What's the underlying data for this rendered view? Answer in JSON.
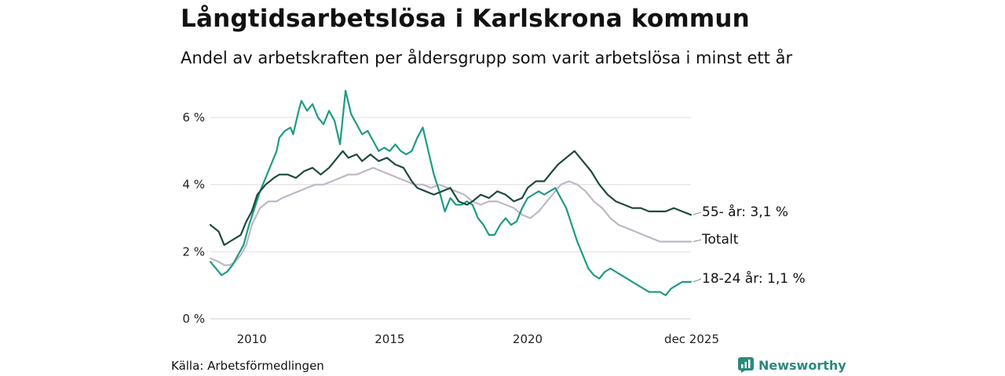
{
  "title": "Långtidsarbetslösa i Karlskrona kommun",
  "subtitle": "Andel av arbetskraften per åldersgrupp som varit arbetslösa i minst ett år",
  "source": "Källa: Arbetsförmedlingen",
  "logo": {
    "text": "Newsworthy",
    "color": "#2a8a7b"
  },
  "chart_data": {
    "type": "line",
    "xlim": [
      2008.5,
      2025.92
    ],
    "ylim": [
      0,
      6.7
    ],
    "grid": true,
    "y_ticks": [
      0,
      2,
      4,
      6
    ],
    "y_tick_labels": [
      "0 %",
      "2 %",
      "4 %",
      "6 %"
    ],
    "x_ticks": [
      2010,
      2015,
      2020,
      2025.92
    ],
    "x_tick_labels": [
      "2010",
      "2015",
      "2020",
      "dec 2025"
    ],
    "series": [
      {
        "name": "55- år",
        "end_label": "55- år: 3,1 %",
        "color": "#1f4a3f",
        "x": [
          2008.5,
          2008.8,
          2009.0,
          2009.2,
          2009.4,
          2009.6,
          2009.8,
          2010.0,
          2010.2,
          2010.5,
          2010.8,
          2011.0,
          2011.3,
          2011.6,
          2011.9,
          2012.2,
          2012.5,
          2012.8,
          2013.0,
          2013.3,
          2013.5,
          2013.8,
          2014.0,
          2014.3,
          2014.6,
          2014.9,
          2015.2,
          2015.5,
          2015.8,
          2016.0,
          2016.3,
          2016.6,
          2016.9,
          2017.2,
          2017.5,
          2017.8,
          2018.0,
          2018.3,
          2018.6,
          2018.9,
          2019.2,
          2019.5,
          2019.8,
          2020.0,
          2020.3,
          2020.6,
          2020.9,
          2021.1,
          2021.4,
          2021.7,
          2022.0,
          2022.3,
          2022.6,
          2022.9,
          2023.2,
          2023.5,
          2023.8,
          2024.1,
          2024.4,
          2024.7,
          2025.0,
          2025.3,
          2025.6,
          2025.92
        ],
        "y": [
          2.8,
          2.6,
          2.2,
          2.3,
          2.4,
          2.5,
          2.9,
          3.2,
          3.7,
          4.0,
          4.2,
          4.3,
          4.3,
          4.2,
          4.4,
          4.5,
          4.3,
          4.5,
          4.7,
          5.0,
          4.8,
          4.9,
          4.7,
          4.9,
          4.7,
          4.8,
          4.6,
          4.5,
          4.1,
          3.9,
          3.8,
          3.7,
          3.8,
          3.9,
          3.5,
          3.4,
          3.5,
          3.7,
          3.6,
          3.8,
          3.7,
          3.5,
          3.6,
          3.9,
          4.1,
          4.1,
          4.4,
          4.6,
          4.8,
          5.0,
          4.7,
          4.4,
          4.0,
          3.7,
          3.5,
          3.4,
          3.3,
          3.3,
          3.2,
          3.2,
          3.2,
          3.3,
          3.2,
          3.1
        ]
      },
      {
        "name": "Totalt",
        "end_label": "Totalt",
        "color": "#bdb8c6",
        "x": [
          2008.5,
          2008.8,
          2009.0,
          2009.2,
          2009.4,
          2009.6,
          2009.8,
          2010.0,
          2010.3,
          2010.6,
          2010.9,
          2011.1,
          2011.4,
          2011.7,
          2012.0,
          2012.3,
          2012.6,
          2012.9,
          2013.2,
          2013.5,
          2013.8,
          2014.1,
          2014.4,
          2014.7,
          2015.0,
          2015.3,
          2015.6,
          2015.9,
          2016.2,
          2016.5,
          2016.8,
          2017.1,
          2017.4,
          2017.7,
          2018.0,
          2018.3,
          2018.6,
          2018.9,
          2019.2,
          2019.5,
          2019.8,
          2020.1,
          2020.4,
          2020.7,
          2021.0,
          2021.2,
          2021.5,
          2021.8,
          2022.1,
          2022.4,
          2022.7,
          2023.0,
          2023.3,
          2023.6,
          2023.9,
          2024.2,
          2024.5,
          2024.8,
          2025.1,
          2025.4,
          2025.7,
          2025.92
        ],
        "y": [
          1.8,
          1.7,
          1.6,
          1.6,
          1.7,
          1.9,
          2.2,
          2.8,
          3.3,
          3.5,
          3.5,
          3.6,
          3.7,
          3.8,
          3.9,
          4.0,
          4.0,
          4.1,
          4.2,
          4.3,
          4.3,
          4.4,
          4.5,
          4.4,
          4.3,
          4.2,
          4.1,
          4.0,
          4.0,
          3.9,
          4.0,
          3.9,
          3.8,
          3.7,
          3.5,
          3.4,
          3.5,
          3.5,
          3.4,
          3.3,
          3.1,
          3.0,
          3.2,
          3.5,
          3.8,
          4.0,
          4.1,
          4.0,
          3.8,
          3.5,
          3.3,
          3.0,
          2.8,
          2.7,
          2.6,
          2.5,
          2.4,
          2.3,
          2.3,
          2.3,
          2.3,
          2.3
        ]
      },
      {
        "name": "18-24 år",
        "end_label": "18-24 år: 1,1 %",
        "color": "#1f9a86",
        "x": [
          2008.5,
          2008.7,
          2008.9,
          2009.1,
          2009.3,
          2009.5,
          2009.7,
          2009.9,
          2010.1,
          2010.3,
          2010.5,
          2010.7,
          2010.9,
          2011.0,
          2011.2,
          2011.4,
          2011.5,
          2011.7,
          2011.8,
          2012.0,
          2012.2,
          2012.4,
          2012.6,
          2012.8,
          2013.0,
          2013.2,
          2013.4,
          2013.6,
          2013.8,
          2014.0,
          2014.2,
          2014.4,
          2014.6,
          2014.8,
          2015.0,
          2015.2,
          2015.4,
          2015.6,
          2015.8,
          2016.0,
          2016.2,
          2016.4,
          2016.6,
          2016.8,
          2017.0,
          2017.2,
          2017.4,
          2017.6,
          2017.8,
          2018.0,
          2018.2,
          2018.4,
          2018.6,
          2018.8,
          2019.0,
          2019.2,
          2019.4,
          2019.6,
          2019.8,
          2020.0,
          2020.2,
          2020.4,
          2020.6,
          2020.8,
          2021.0,
          2021.2,
          2021.4,
          2021.6,
          2021.8,
          2022.0,
          2022.2,
          2022.4,
          2022.6,
          2022.8,
          2023.0,
          2023.2,
          2023.4,
          2023.6,
          2023.8,
          2024.0,
          2024.2,
          2024.4,
          2024.6,
          2024.8,
          2025.0,
          2025.2,
          2025.4,
          2025.6,
          2025.92
        ],
        "y": [
          1.7,
          1.5,
          1.3,
          1.4,
          1.6,
          1.9,
          2.2,
          2.8,
          3.3,
          3.8,
          4.2,
          4.6,
          5.0,
          5.4,
          5.6,
          5.7,
          5.5,
          6.2,
          6.5,
          6.2,
          6.4,
          6.0,
          5.8,
          6.2,
          5.9,
          5.2,
          6.8,
          6.1,
          5.8,
          5.5,
          5.6,
          5.3,
          5.0,
          5.1,
          5.0,
          5.2,
          5.0,
          4.9,
          5.0,
          5.4,
          5.7,
          5.0,
          4.3,
          3.8,
          3.2,
          3.6,
          3.4,
          3.4,
          3.5,
          3.4,
          3.0,
          2.8,
          2.5,
          2.5,
          2.8,
          3.0,
          2.8,
          2.9,
          3.3,
          3.6,
          3.7,
          3.8,
          3.7,
          3.8,
          3.9,
          3.6,
          3.3,
          2.8,
          2.3,
          1.9,
          1.5,
          1.3,
          1.2,
          1.4,
          1.5,
          1.4,
          1.3,
          1.2,
          1.1,
          1.0,
          0.9,
          0.8,
          0.8,
          0.8,
          0.7,
          0.9,
          1.0,
          1.1,
          1.1
        ]
      }
    ]
  }
}
